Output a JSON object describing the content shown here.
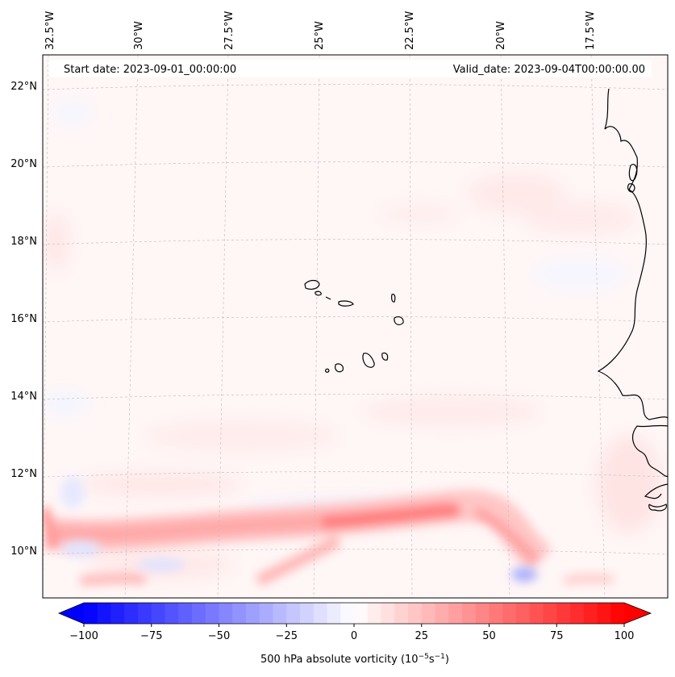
{
  "map": {
    "start_date": "Start date: 2023-09-01_00:00:00",
    "valid_date": "Valid_date: 2023-09-04T00:00:00.00",
    "lon_labels": [
      "32.5°W",
      "30°W",
      "27.5°W",
      "25°W",
      "22.5°W",
      "20°W",
      "17.5°W"
    ],
    "lat_labels": [
      "22°N",
      "20°N",
      "18°N",
      "16°N",
      "14°N",
      "12°N",
      "10°N"
    ],
    "colorbar": {
      "label_main": "500 hPa absolute vorticity (10",
      "label_exp1": "−5",
      "label_mid": "s",
      "label_exp2": "−1",
      "label_end": ")",
      "ticks": [
        "−100",
        "−75",
        "−50",
        "−25",
        "0",
        "25",
        "50",
        "75",
        "100"
      ],
      "min": -100,
      "max": 100,
      "neg_color": "#0000ff",
      "pos_color": "#ff0000"
    }
  }
}
